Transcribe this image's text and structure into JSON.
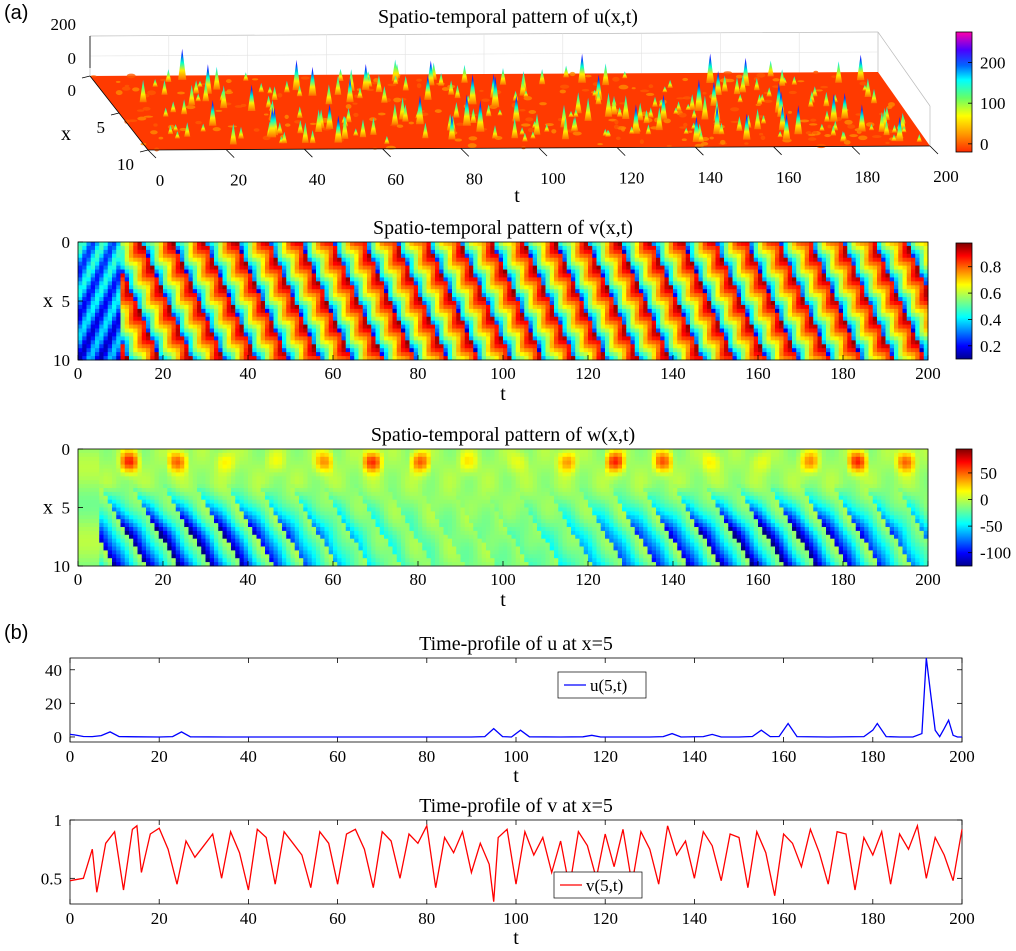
{
  "panel_labels": {
    "a": "(a)",
    "b": "(b)"
  },
  "chart_data": [
    {
      "type": "surface3d",
      "title": "Spatio-temporal pattern of u(x,t)",
      "xlabel": "t",
      "ylabel": "x",
      "t_ticks": [
        0,
        20,
        40,
        60,
        80,
        100,
        120,
        140,
        160,
        180,
        200
      ],
      "x_ticks": [
        0,
        5,
        10
      ],
      "z_ticks": [
        0,
        200
      ],
      "colorbar_ticks": [
        0,
        100,
        200
      ],
      "colorbar_range": [
        -20,
        275
      ],
      "colormap": "jet",
      "base_color": "#ff3a00",
      "base_value": 0
    },
    {
      "type": "heatmap",
      "title": "Spatio-temporal pattern of v(x,t)",
      "xlabel": "t",
      "ylabel": "x",
      "xlim": [
        0,
        200
      ],
      "ylim": [
        0,
        10
      ],
      "x_ticks": [
        0,
        20,
        40,
        60,
        80,
        100,
        120,
        140,
        160,
        180,
        200
      ],
      "y_ticks": [
        0,
        5,
        10
      ],
      "colorbar_ticks": [
        0.2,
        0.4,
        0.6,
        0.8
      ],
      "colorbar_range": [
        0.1,
        0.98
      ],
      "colormap": "jet",
      "pattern": "diagonal travelling stripes, period ~7.5, drifting toward larger t as x increases"
    },
    {
      "type": "heatmap",
      "title": "Spatio-temporal pattern of w(x,t)",
      "xlabel": "t",
      "ylabel": "x",
      "xlim": [
        0,
        200
      ],
      "ylim": [
        0,
        10
      ],
      "x_ticks": [
        0,
        20,
        40,
        60,
        80,
        100,
        120,
        140,
        160,
        180,
        200
      ],
      "y_ticks": [
        0,
        5,
        10
      ],
      "colorbar_ticks": [
        50,
        0,
        -50,
        -100
      ],
      "colorbar_range": [
        -125,
        95
      ],
      "colormap": "jet",
      "pattern": "positive patches near x=1, negative banded blocks at x=4-10"
    },
    {
      "type": "line",
      "title": "Time-profile of u at x=5",
      "xlabel": "t",
      "ylabel": "",
      "xlim": [
        0,
        200
      ],
      "ylim": [
        -3,
        47
      ],
      "x_ticks": [
        0,
        20,
        40,
        60,
        80,
        100,
        120,
        140,
        160,
        180,
        200
      ],
      "y_ticks": [
        0,
        20,
        40
      ],
      "legend": "top-center",
      "series": [
        {
          "name": "u(5,t)",
          "color": "#0000ff",
          "x": [
            0,
            1,
            3,
            5,
            7,
            9,
            11,
            15,
            20,
            23,
            25,
            27,
            35,
            50,
            70,
            90,
            93,
            95,
            97,
            99,
            101,
            103,
            110,
            115,
            117,
            119,
            130,
            133,
            135,
            137,
            142,
            144,
            146,
            150,
            153,
            155,
            157,
            159,
            161,
            163,
            170,
            178,
            180,
            181,
            183,
            186,
            189,
            191,
            192,
            193,
            194,
            195,
            196,
            197,
            198,
            199,
            200
          ],
          "y": [
            1.5,
            1.2,
            0.3,
            0.2,
            0.8,
            3,
            0.2,
            0.1,
            0,
            0.2,
            3,
            0.1,
            0,
            0,
            0,
            0,
            0.2,
            5,
            0.2,
            0,
            4,
            0.1,
            0,
            0.1,
            1,
            0,
            0,
            0.2,
            2,
            0,
            0.2,
            1.5,
            0,
            0,
            0.3,
            4,
            0.2,
            0.3,
            8,
            0.2,
            0,
            0.2,
            4,
            8,
            0.2,
            0,
            0,
            2,
            47,
            25,
            4,
            0.2,
            5,
            10,
            1,
            0,
            0
          ]
        }
      ]
    },
    {
      "type": "line",
      "title": "Time-profile of v at x=5",
      "xlabel": "t",
      "ylabel": "",
      "xlim": [
        0,
        200
      ],
      "ylim": [
        0.28,
        1
      ],
      "x_ticks": [
        0,
        20,
        40,
        60,
        80,
        100,
        120,
        140,
        160,
        180,
        200
      ],
      "y_ticks": [
        0.5,
        1
      ],
      "y_tick_labels": [
        "0.5",
        "1"
      ],
      "legend": "bottom-center",
      "series": [
        {
          "name": "v(5,t)",
          "color": "#ff0000",
          "x": [
            0,
            3,
            5,
            6,
            8,
            10,
            12,
            14,
            15,
            16,
            18,
            20,
            22,
            24,
            26,
            28,
            30,
            32,
            34,
            36,
            38,
            40,
            42,
            44,
            46,
            48,
            50,
            52,
            54,
            56,
            58,
            60,
            62,
            64,
            66,
            68,
            70,
            72,
            74,
            76,
            78,
            80,
            82,
            84,
            86,
            88,
            90,
            92,
            94,
            95,
            96,
            98,
            100,
            102,
            104,
            106,
            108,
            110,
            112,
            114,
            116,
            118,
            120,
            122,
            124,
            126,
            128,
            130,
            132,
            134,
            136,
            138,
            140,
            142,
            144,
            146,
            148,
            150,
            152,
            154,
            156,
            158,
            160,
            162,
            164,
            166,
            168,
            170,
            172,
            174,
            176,
            178,
            180,
            182,
            184,
            186,
            188,
            190,
            192,
            194,
            196,
            198,
            200
          ],
          "y": [
            0.48,
            0.5,
            0.75,
            0.38,
            0.8,
            0.9,
            0.4,
            0.92,
            0.95,
            0.55,
            0.88,
            0.93,
            0.75,
            0.45,
            0.82,
            0.68,
            0.78,
            0.88,
            0.5,
            0.9,
            0.72,
            0.4,
            0.92,
            0.85,
            0.45,
            0.9,
            0.8,
            0.7,
            0.42,
            0.9,
            0.8,
            0.45,
            0.88,
            0.92,
            0.75,
            0.42,
            0.9,
            0.82,
            0.5,
            0.88,
            0.8,
            0.95,
            0.42,
            0.85,
            0.72,
            0.9,
            0.55,
            0.8,
            0.62,
            0.3,
            0.85,
            0.92,
            0.45,
            0.9,
            0.7,
            0.85,
            0.55,
            0.82,
            0.42,
            0.9,
            0.78,
            0.5,
            0.88,
            0.6,
            0.92,
            0.45,
            0.9,
            0.75,
            0.45,
            0.95,
            0.7,
            0.82,
            0.5,
            0.9,
            0.78,
            0.48,
            0.88,
            0.85,
            0.42,
            0.9,
            0.72,
            0.35,
            0.88,
            0.8,
            0.6,
            0.92,
            0.72,
            0.45,
            0.9,
            0.88,
            0.4,
            0.85,
            0.7,
            0.9,
            0.45,
            0.88,
            0.75,
            0.95,
            0.5,
            0.85,
            0.7,
            0.48,
            0.92
          ]
        }
      ]
    }
  ]
}
